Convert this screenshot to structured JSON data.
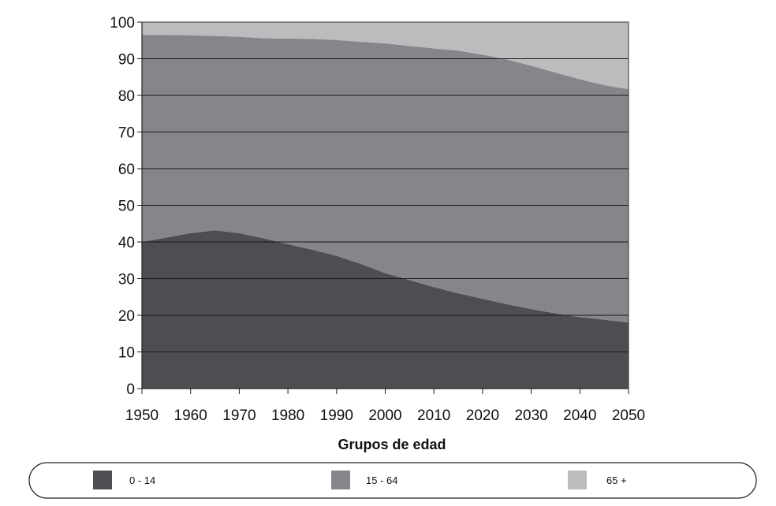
{
  "chart_data": {
    "type": "area",
    "stacked": true,
    "x": [
      1950,
      1955,
      1960,
      1965,
      1970,
      1975,
      1980,
      1985,
      1990,
      1995,
      2000,
      2005,
      2010,
      2015,
      2020,
      2025,
      2030,
      2035,
      2040,
      2045,
      2050
    ],
    "series": [
      {
        "name": "0 - 14",
        "color": "#4d4d52",
        "values": [
          40.0,
          41.2,
          42.4,
          43.2,
          42.4,
          41.0,
          39.4,
          37.9,
          36.2,
          34.0,
          31.5,
          29.6,
          27.7,
          26.0,
          24.5,
          23.0,
          21.7,
          20.5,
          19.5,
          18.8,
          18.0
        ]
      },
      {
        "name": "15 - 64",
        "color": "#86868a",
        "values": [
          56.5,
          55.3,
          54.0,
          53.0,
          53.6,
          54.6,
          56.1,
          57.5,
          58.9,
          60.6,
          62.7,
          63.9,
          65.1,
          66.2,
          66.6,
          66.8,
          66.4,
          65.7,
          64.9,
          64.0,
          63.7
        ]
      },
      {
        "name": "65 +",
        "color": "#bcbcbf",
        "values": [
          3.5,
          3.5,
          3.6,
          3.8,
          4.0,
          4.4,
          4.5,
          4.6,
          4.9,
          5.4,
          5.8,
          6.5,
          7.2,
          7.8,
          8.9,
          10.2,
          11.9,
          13.8,
          15.6,
          17.2,
          18.3
        ]
      }
    ],
    "x_ticks": [
      1950,
      1960,
      1970,
      1980,
      1990,
      2000,
      2010,
      2020,
      2030,
      2040,
      2050
    ],
    "y_ticks": [
      0,
      10,
      20,
      30,
      40,
      50,
      60,
      70,
      80,
      90,
      100
    ],
    "xlim": [
      1950,
      2050
    ],
    "ylim": [
      0,
      100
    ],
    "xlabel": "Grupos de edad",
    "ylabel": "",
    "title": "",
    "grid": true,
    "legend_position": "bottom"
  }
}
